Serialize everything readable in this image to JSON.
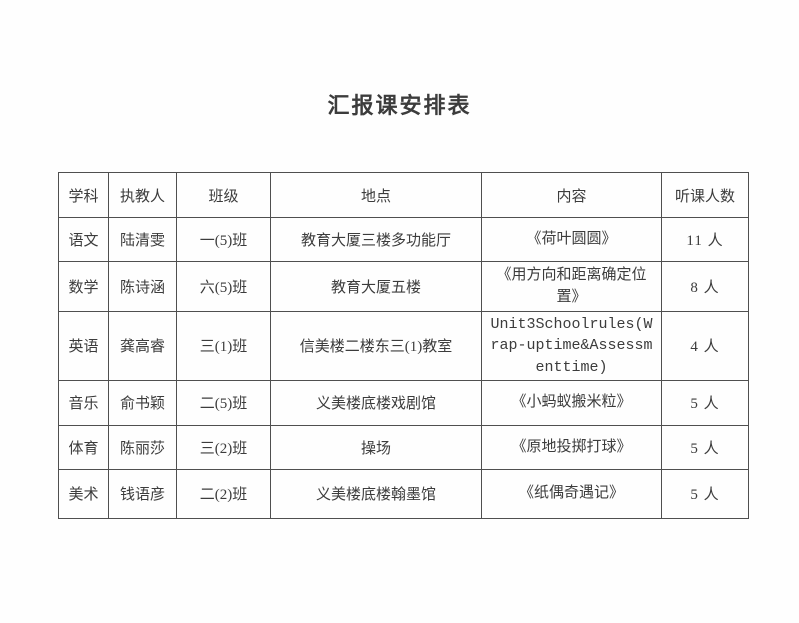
{
  "page": {
    "title": "汇报课安排表"
  },
  "colors": {
    "text": "#3c3c3c",
    "border": "#4f4f4f",
    "background": "#fefefe"
  },
  "table": {
    "headers": [
      "学科",
      "执教人",
      "班级",
      "地点",
      "内容",
      "听课人数"
    ],
    "rows": [
      {
        "subject": "语文",
        "teacher": "陆清雯",
        "class": "一(5)班",
        "location": "教育大厦三楼多功能厅",
        "content": "《荷叶圆圆》",
        "attendees": "11 人"
      },
      {
        "subject": "数学",
        "teacher": "陈诗涵",
        "class": "六(5)班",
        "location": "教育大厦五楼",
        "content": "《用方向和距离确定位置》",
        "attendees": "8 人"
      },
      {
        "subject": "英语",
        "teacher": "龚高睿",
        "class": "三(1)班",
        "location": "信美楼二楼东三(1)教室",
        "content": "Unit3Schoolrules(Wrap-uptime&Assessmenttime)",
        "attendees": "4 人"
      },
      {
        "subject": "音乐",
        "teacher": "俞书颖",
        "class": "二(5)班",
        "location": "义美楼底楼戏剧馆",
        "content": "《小蚂蚁搬米粒》",
        "attendees": "5 人"
      },
      {
        "subject": "体育",
        "teacher": "陈丽莎",
        "class": "三(2)班",
        "location": "操场",
        "content": "《原地投掷打球》",
        "attendees": "5 人"
      },
      {
        "subject": "美术",
        "teacher": "钱语彦",
        "class": "二(2)班",
        "location": "义美楼底楼翰墨馆",
        "content": "《纸偶奇遇记》",
        "attendees": "5 人"
      }
    ]
  }
}
